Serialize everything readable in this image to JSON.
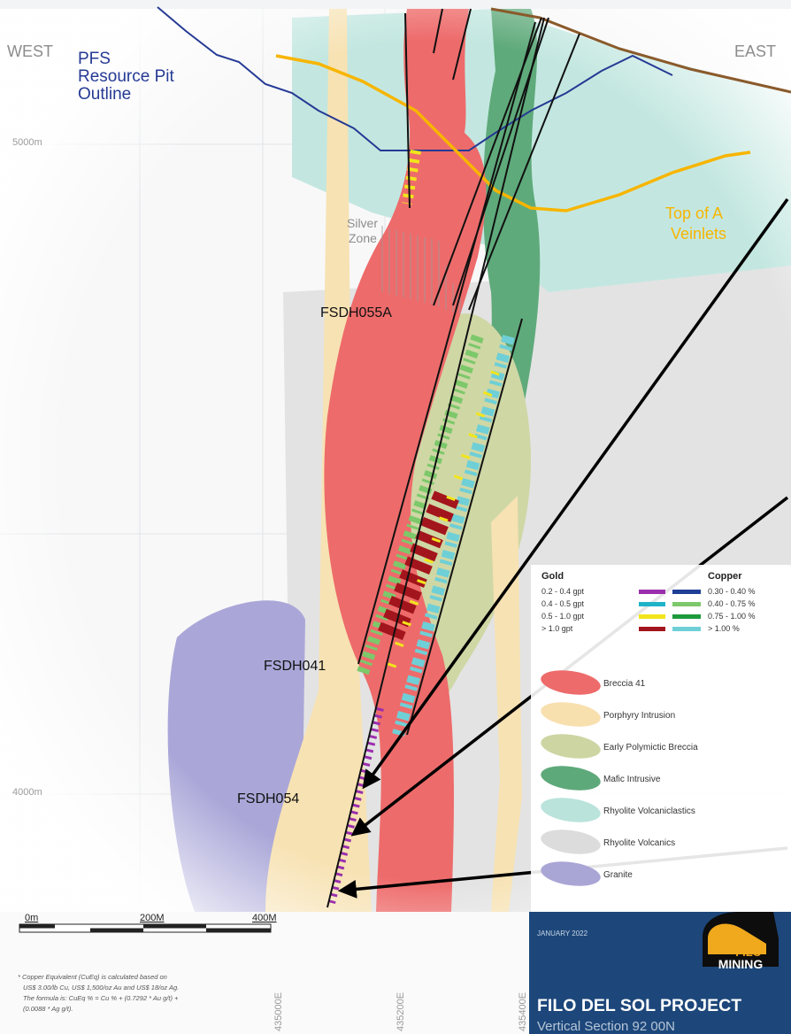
{
  "labels": {
    "west": "WEST",
    "east": "EAST",
    "pit_outline": [
      "PFS",
      "Resource  Pit",
      "Outline"
    ],
    "elevation_top": "5000m",
    "elevation_bottom": "4000m",
    "silver_zone": [
      "Silver",
      "Zone"
    ],
    "top_of_a_veinlets": [
      "Top of A",
      "Veinlets"
    ],
    "holes": [
      "FSDH055A",
      "FSDH041",
      "FSDH054"
    ]
  },
  "grade_legend": {
    "gold_title": "Gold",
    "copper_title": "Copper",
    "rows": [
      {
        "gold": "0.2 - 0.4 gpt",
        "gold_color": "#9b2fae",
        "copper": "0.30 - 0.40 %",
        "copper_color": "#1f3e96"
      },
      {
        "gold": "0.4 - 0.5 gpt",
        "gold_color": "#1fb3c8",
        "copper": "0.40 - 0.75 %",
        "copper_color": "#7cc86a"
      },
      {
        "gold": "0.5 - 1.0 gpt",
        "gold_color": "#f2e51b",
        "copper": "0.75 - 1.00 %",
        "copper_color": "#1e9a3c"
      },
      {
        "gold": "> 1.0 gpt",
        "gold_color": "#a3151c",
        "copper": "> 1.00 %",
        "copper_color": "#6fcfd6"
      }
    ]
  },
  "lithology_legend": [
    {
      "label": "Breccia 41",
      "color": "#ee6b6b"
    },
    {
      "label": "Porphyry Intrusion",
      "color": "#f8dfae"
    },
    {
      "label": "Early Polymictic Breccia",
      "color": "#cdd5a3"
    },
    {
      "label": "Mafic Intrusive",
      "color": "#5ea97a"
    },
    {
      "label": "Rhyolite Volcaniclastics",
      "color": "#b9e3db"
    },
    {
      "label": "Rhyolite Volcanics",
      "color": "#dcdcdc"
    },
    {
      "label": "Granite",
      "color": "#a9a6d6"
    }
  ],
  "scale_bar": [
    "0m",
    "200M",
    "400M"
  ],
  "footnote": [
    "* Copper Equivalent (CuEq) is calculated based on",
    "US$ 3.00/lb Cu, US$ 1,500/oz Au and US$ 18/oz Ag.",
    "The formula is:  CuEq % = Cu % + (0.7292 * Au g/t) +",
    "(0.0088 * Ag g/t)."
  ],
  "eastings": [
    "435000E",
    "435200E",
    "435400E"
  ],
  "title_block": {
    "date": "JANUARY 2022",
    "logo_top": "FILO",
    "logo_bottom": "MINING",
    "title": "FILO DEL SOL PROJECT",
    "subtitle": "Vertical Section 92 00N"
  }
}
